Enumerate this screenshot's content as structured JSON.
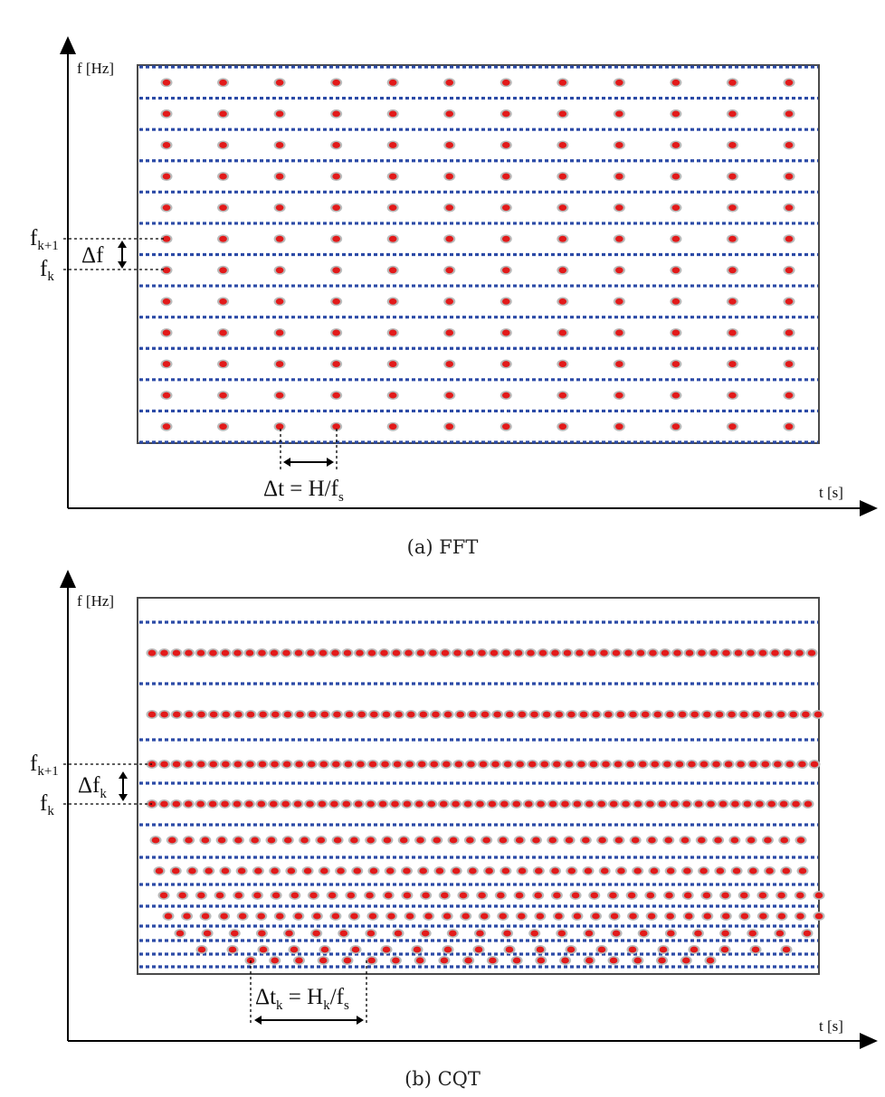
{
  "colors": {
    "bin_line": "#2b4aa6",
    "dot_fill": "#e21a1a",
    "dot_halo": "#b9b9b9",
    "frame": "#4a4a4a",
    "axis": "#000000"
  },
  "panels": [
    {
      "id": "fft",
      "y_axis_label": "f [Hz]",
      "x_axis_label": "t [s]",
      "freq_upper_label": {
        "main": "f",
        "sub": "k+1"
      },
      "freq_lower_label": {
        "main": "f",
        "sub": "k"
      },
      "freq_step_label": {
        "main": "Δf",
        "sub": ""
      },
      "time_step_label": {
        "main": "Δt = H/f",
        "sub": "s"
      },
      "caption": "(a) FFT",
      "bins": 12,
      "frames_per_bin": [
        12,
        12,
        12,
        12,
        12,
        12,
        12,
        12,
        12,
        12,
        12,
        12
      ]
    },
    {
      "id": "cqt",
      "y_axis_label": "f [Hz]",
      "x_axis_label": "t [s]",
      "freq_upper_label": {
        "main": "f",
        "sub": "k+1"
      },
      "freq_lower_label": {
        "main": "f",
        "sub": "k"
      },
      "freq_step_label": {
        "main": "Δf",
        "sub": "k"
      },
      "time_step_label": {
        "main": "Δt",
        "sub": "k",
        "eq": " = H",
        "sub2": "k",
        "slash": "/f",
        "sub3": "s"
      },
      "caption": "(b) CQT",
      "bins": 11,
      "frames_per_bin": [
        55,
        55,
        55,
        55,
        40,
        40,
        36,
        36,
        24,
        20,
        20
      ]
    }
  ]
}
